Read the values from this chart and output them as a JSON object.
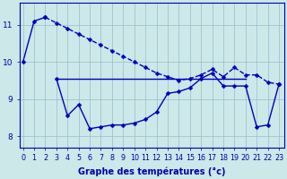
{
  "line1": {
    "x": [
      0,
      1,
      2
    ],
    "y": [
      10.0,
      11.1,
      11.2
    ],
    "color": "#0000bb",
    "linewidth": 1.0,
    "markersize": 2.5
  },
  "line2_solid": {
    "x": [
      1,
      2
    ],
    "y": [
      11.1,
      11.2
    ],
    "color": "#0000bb",
    "linewidth": 1.0,
    "markersize": 2.5
  },
  "line2_dash": {
    "x": [
      2,
      3,
      4,
      5,
      6,
      7,
      8,
      9,
      10,
      11,
      12,
      13,
      14,
      15,
      16,
      17,
      18,
      19,
      20,
      21,
      22,
      23
    ],
    "y": [
      11.2,
      11.05,
      10.9,
      10.75,
      10.6,
      10.45,
      10.3,
      10.15,
      10.0,
      9.85,
      9.7,
      9.6,
      9.5,
      9.55,
      9.65,
      9.8,
      9.6,
      9.85,
      9.65,
      9.65,
      9.45,
      9.4
    ],
    "color": "#0000bb",
    "linewidth": 1.0,
    "markersize": 2.5
  },
  "line3": {
    "x": [
      3,
      4,
      5,
      6,
      7,
      8,
      9,
      10,
      11,
      12,
      13,
      14,
      15,
      16,
      17,
      18,
      19,
      20,
      21,
      22,
      23
    ],
    "y": [
      9.55,
      8.55,
      8.85,
      8.2,
      8.25,
      8.3,
      8.3,
      8.35,
      8.45,
      8.65,
      9.15,
      9.2,
      9.3,
      9.55,
      9.7,
      9.35,
      9.35,
      9.35,
      8.25,
      8.3,
      9.4
    ],
    "color": "#0000bb",
    "linewidth": 1.0,
    "markersize": 2.5
  },
  "line4_flat": {
    "x": [
      3,
      4,
      5,
      6,
      7,
      8,
      9,
      10,
      11,
      12,
      13,
      14,
      15,
      16,
      17,
      18,
      19,
      20
    ],
    "y": [
      9.55,
      9.55,
      9.55,
      9.55,
      9.55,
      9.55,
      9.55,
      9.55,
      9.55,
      9.55,
      9.55,
      9.55,
      9.55,
      9.55,
      9.55,
      9.55,
      9.55,
      9.55
    ],
    "color": "#0000bb",
    "linewidth": 1.0,
    "markersize": 0
  },
  "xlim": [
    -0.3,
    23.5
  ],
  "ylim": [
    7.7,
    11.6
  ],
  "yticks": [
    8,
    9,
    10,
    11
  ],
  "xticks": [
    0,
    1,
    2,
    3,
    4,
    5,
    6,
    7,
    8,
    9,
    10,
    11,
    12,
    13,
    14,
    15,
    16,
    17,
    18,
    19,
    20,
    21,
    22,
    23
  ],
  "xlabel": "Graphe des températures (°c)",
  "bg_color": "#cce8e8",
  "grid_color": "#99bbcc",
  "axis_color": "#0000aa",
  "tick_color": "#0000aa",
  "label_color": "#0000aa",
  "tick_fontsize": 5.8,
  "ytick_fontsize": 6.5,
  "xlabel_fontsize": 7.0
}
